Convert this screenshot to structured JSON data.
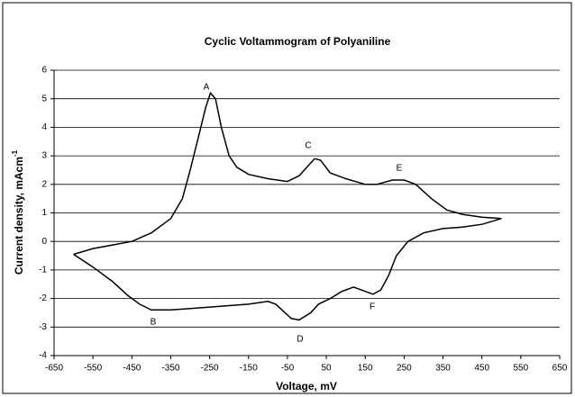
{
  "chart_data": {
    "type": "line",
    "title": "Cyclic Voltammogram of Polyaniline",
    "x_label": "Voltage, mV",
    "y_label": "Current density, mAcm",
    "y_label_sup": "-1",
    "xlim": [
      -650,
      650
    ],
    "xticks": [
      -650,
      -550,
      -450,
      -350,
      -250,
      -150,
      -50,
      50,
      150,
      250,
      350,
      450,
      550,
      650
    ],
    "ylim": [
      -4,
      6
    ],
    "yticks": [
      -4,
      -3,
      -2,
      -1,
      0,
      1,
      2,
      3,
      4,
      5,
      6
    ],
    "grid": true,
    "series": [
      {
        "color": "#000000",
        "x": [
          -600,
          -550,
          -450,
          -400,
          -350,
          -320,
          -300,
          -280,
          -260,
          -248,
          -235,
          -220,
          -200,
          -180,
          -150,
          -100,
          -50,
          -20,
          0,
          20,
          35,
          60,
          100,
          150,
          180,
          220,
          250,
          280,
          320,
          360,
          400,
          450,
          500,
          450,
          400,
          350,
          300,
          260,
          230,
          210,
          190,
          170,
          140,
          120,
          90,
          60,
          30,
          10,
          -20,
          -40,
          -80,
          -100,
          -150,
          -200,
          -250,
          -300,
          -350,
          -400,
          -430,
          -460,
          -500,
          -550,
          -600
        ],
        "values": [
          -0.45,
          -0.25,
          0.0,
          0.3,
          0.8,
          1.5,
          2.5,
          3.6,
          4.7,
          5.2,
          5.0,
          4.0,
          3.0,
          2.6,
          2.35,
          2.2,
          2.1,
          2.3,
          2.6,
          2.9,
          2.85,
          2.4,
          2.2,
          2.0,
          2.0,
          2.15,
          2.15,
          2.0,
          1.5,
          1.1,
          0.95,
          0.85,
          0.8,
          0.6,
          0.5,
          0.45,
          0.3,
          0.0,
          -0.5,
          -1.2,
          -1.7,
          -1.85,
          -1.7,
          -1.6,
          -1.75,
          -2.0,
          -2.2,
          -2.5,
          -2.75,
          -2.7,
          -2.2,
          -2.1,
          -2.2,
          -2.25,
          -2.3,
          -2.35,
          -2.4,
          -2.4,
          -2.2,
          -1.9,
          -1.4,
          -0.9,
          -0.45
        ]
      }
    ],
    "annotations": [
      "A",
      "C",
      "E",
      "B",
      "D",
      "F"
    ]
  }
}
